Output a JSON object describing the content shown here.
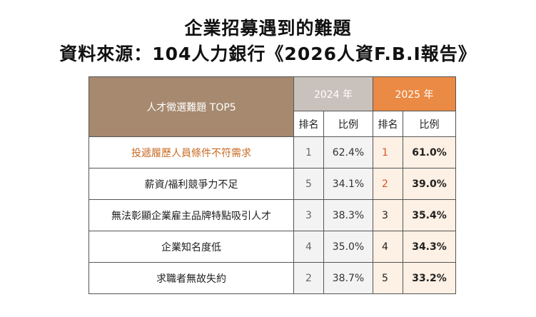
{
  "title_line1": "企業招募遇到的難題",
  "title_line2": "資料來源：104人力銀行《2026人資F.B.I報告》",
  "table": {
    "header_main": "人才徵選難題 TOP5",
    "year_2024": "2024 年",
    "year_2025": "2025 年",
    "sub_rank_2024": "排名",
    "sub_ratio_2024": "比例",
    "sub_rank_2025": "排名",
    "sub_ratio_2025": "比例",
    "rows": [
      {
        "issue": "投遞履歷人員條件不符需求",
        "rank_2024": "1",
        "ratio_2024": "62.4%",
        "rank_2025": "1",
        "ratio_2025": "61.0%"
      },
      {
        "issue": "薪資/福利競爭力不足",
        "rank_2024": "5",
        "ratio_2024": "34.1%",
        "rank_2025": "2",
        "ratio_2025": "39.0%"
      },
      {
        "issue": "無法彰顯企業雇主品牌特點吸引人才",
        "rank_2024": "3",
        "ratio_2024": "38.3%",
        "rank_2025": "3",
        "ratio_2025": "35.4%"
      },
      {
        "issue": "企業知名度低",
        "rank_2024": "4",
        "ratio_2024": "35.0%",
        "rank_2025": "4",
        "ratio_2025": "34.3%"
      },
      {
        "issue": "求職者無故失約",
        "rank_2024": "2",
        "ratio_2024": "38.7%",
        "rank_2025": "5",
        "ratio_2025": "33.2%"
      }
    ]
  },
  "colors": {
    "header_main_bg": "#a6896f",
    "header_2024_bg": "#c9c1bb",
    "header_2025_bg": "#ea8a44",
    "highlight_text": "#c86a22"
  }
}
